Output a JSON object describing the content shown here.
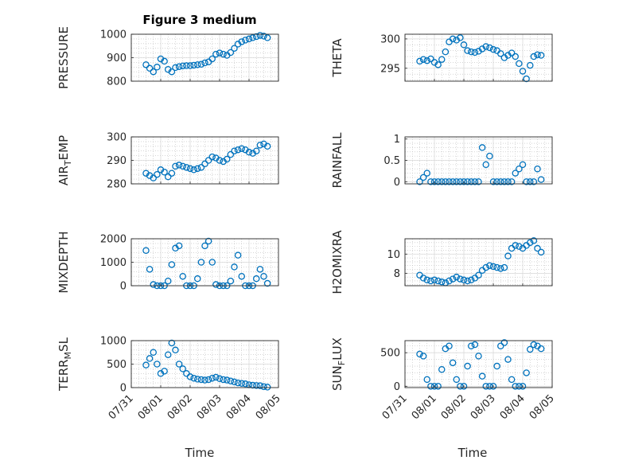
{
  "figure": {
    "title": "Figure 3 medium",
    "xlabel": "Time",
    "x_ticks": [
      "07/31",
      "08/01",
      "08/02",
      "08/03",
      "08/04",
      "08/05"
    ],
    "marker_color": "#0072BD",
    "grid": true
  },
  "chart_data": [
    {
      "type": "scatter",
      "ylabel": "PRESSURE",
      "ylim": [
        800,
        1000
      ],
      "yticks": [
        800,
        900,
        1000
      ],
      "x": [
        "07/31 12:00",
        "07/31 15:00",
        "07/31 18:00",
        "07/31 21:00",
        "08/01 00:00",
        "08/01 03:00",
        "08/01 06:00",
        "08/01 09:00",
        "08/01 12:00",
        "08/01 15:00",
        "08/01 18:00",
        "08/01 21:00",
        "08/02 00:00",
        "08/02 03:00",
        "08/02 06:00",
        "08/02 09:00",
        "08/02 12:00",
        "08/02 15:00",
        "08/02 18:00",
        "08/02 21:00",
        "08/03 00:00",
        "08/03 03:00",
        "08/03 06:00",
        "08/03 09:00",
        "08/03 12:00",
        "08/03 15:00",
        "08/03 18:00",
        "08/03 21:00",
        "08/04 00:00",
        "08/04 03:00",
        "08/04 06:00",
        "08/04 09:00",
        "08/04 12:00",
        "08/04 15:00"
      ],
      "y": [
        870,
        855,
        840,
        860,
        895,
        885,
        850,
        840,
        858,
        862,
        865,
        866,
        866,
        868,
        870,
        872,
        878,
        882,
        895,
        915,
        920,
        915,
        910,
        922,
        940,
        958,
        968,
        975,
        980,
        985,
        990,
        995,
        992,
        985
      ]
    },
    {
      "type": "scatter",
      "ylabel": "THETA",
      "ylim": [
        292.8,
        300.8
      ],
      "yticks": [
        295,
        300
      ],
      "x": [
        "07/31 12:00",
        "07/31 15:00",
        "07/31 18:00",
        "07/31 21:00",
        "08/01 00:00",
        "08/01 03:00",
        "08/01 06:00",
        "08/01 09:00",
        "08/01 12:00",
        "08/01 15:00",
        "08/01 18:00",
        "08/01 21:00",
        "08/02 00:00",
        "08/02 03:00",
        "08/02 06:00",
        "08/02 09:00",
        "08/02 12:00",
        "08/02 15:00",
        "08/02 18:00",
        "08/02 21:00",
        "08/03 00:00",
        "08/03 03:00",
        "08/03 06:00",
        "08/03 09:00",
        "08/03 12:00",
        "08/03 15:00",
        "08/03 18:00",
        "08/03 21:00",
        "08/04 00:00",
        "08/04 03:00",
        "08/04 06:00",
        "08/04 09:00",
        "08/04 12:00",
        "08/04 15:00"
      ],
      "y": [
        296.2,
        296.5,
        296.3,
        296.6,
        296.0,
        295.6,
        296.5,
        297.8,
        299.5,
        300.0,
        299.8,
        300.2,
        299.0,
        298.0,
        297.8,
        297.7,
        297.9,
        298.3,
        298.7,
        298.5,
        298.2,
        298.0,
        297.5,
        296.8,
        297.2,
        297.6,
        297.0,
        295.8,
        294.5,
        293.2,
        295.5,
        297.0,
        297.3,
        297.2
      ]
    },
    {
      "type": "scatter",
      "ylabel": "AIR_TEMP",
      "ylim": [
        280,
        300
      ],
      "yticks": [
        280,
        290,
        300
      ],
      "x": [
        "07/31 12:00",
        "07/31 15:00",
        "07/31 18:00",
        "07/31 21:00",
        "08/01 00:00",
        "08/01 03:00",
        "08/01 06:00",
        "08/01 09:00",
        "08/01 12:00",
        "08/01 15:00",
        "08/01 18:00",
        "08/01 21:00",
        "08/02 00:00",
        "08/02 03:00",
        "08/02 06:00",
        "08/02 09:00",
        "08/02 12:00",
        "08/02 15:00",
        "08/02 18:00",
        "08/02 21:00",
        "08/03 00:00",
        "08/03 03:00",
        "08/03 06:00",
        "08/03 09:00",
        "08/03 12:00",
        "08/03 15:00",
        "08/03 18:00",
        "08/03 21:00",
        "08/04 00:00",
        "08/04 03:00",
        "08/04 06:00",
        "08/04 09:00",
        "08/04 12:00",
        "08/04 15:00"
      ],
      "y": [
        284.5,
        283.5,
        282.5,
        284.0,
        286.0,
        285.0,
        283.0,
        284.5,
        287.5,
        288.0,
        287.5,
        287.0,
        286.5,
        286.0,
        286.5,
        287.0,
        288.5,
        290.0,
        291.5,
        291.0,
        290.0,
        289.5,
        290.5,
        292.5,
        294.0,
        294.5,
        295.0,
        294.5,
        293.5,
        293.0,
        294.0,
        296.5,
        297.0,
        296.0
      ]
    },
    {
      "type": "scatter",
      "ylabel": "RAINFALL",
      "ylim": [
        -0.05,
        1.05
      ],
      "yticks": [
        0,
        0.5,
        1
      ],
      "x": [
        "07/31 12:00",
        "07/31 15:00",
        "07/31 18:00",
        "07/31 21:00",
        "08/01 00:00",
        "08/01 03:00",
        "08/01 06:00",
        "08/01 09:00",
        "08/01 12:00",
        "08/01 15:00",
        "08/01 18:00",
        "08/01 21:00",
        "08/02 00:00",
        "08/02 03:00",
        "08/02 06:00",
        "08/02 09:00",
        "08/02 12:00",
        "08/02 15:00",
        "08/02 18:00",
        "08/02 21:00",
        "08/03 00:00",
        "08/03 03:00",
        "08/03 06:00",
        "08/03 09:00",
        "08/03 12:00",
        "08/03 15:00",
        "08/03 18:00",
        "08/03 21:00",
        "08/04 00:00",
        "08/04 03:00",
        "08/04 06:00",
        "08/04 09:00",
        "08/04 12:00",
        "08/04 15:00"
      ],
      "y": [
        0.0,
        0.1,
        0.2,
        0.0,
        0.0,
        0.0,
        0.0,
        0.0,
        0.0,
        0.0,
        0.0,
        0.0,
        0.0,
        0.0,
        0.0,
        0.0,
        0.0,
        0.8,
        0.4,
        0.6,
        0.0,
        0.0,
        0.0,
        0.0,
        0.0,
        0.0,
        0.2,
        0.3,
        0.4,
        0.0,
        0.0,
        0.0,
        0.3,
        0.05
      ]
    },
    {
      "type": "scatter",
      "ylabel": "MIXDEPTH",
      "ylim": [
        0,
        2000
      ],
      "yticks": [
        0,
        1000,
        2000
      ],
      "x": [
        "07/31 12:00",
        "07/31 15:00",
        "07/31 18:00",
        "07/31 21:00",
        "08/01 00:00",
        "08/01 03:00",
        "08/01 06:00",
        "08/01 09:00",
        "08/01 12:00",
        "08/01 15:00",
        "08/01 18:00",
        "08/01 21:00",
        "08/02 00:00",
        "08/02 03:00",
        "08/02 06:00",
        "08/02 09:00",
        "08/02 12:00",
        "08/02 15:00",
        "08/02 18:00",
        "08/02 21:00",
        "08/03 00:00",
        "08/03 03:00",
        "08/03 06:00",
        "08/03 09:00",
        "08/03 12:00",
        "08/03 15:00",
        "08/03 18:00",
        "08/03 21:00",
        "08/04 00:00",
        "08/04 03:00",
        "08/04 06:00",
        "08/04 09:00",
        "08/04 12:00",
        "08/04 15:00"
      ],
      "y": [
        1500,
        700,
        50,
        0,
        0,
        0,
        200,
        900,
        1600,
        1700,
        400,
        0,
        0,
        0,
        300,
        1000,
        1700,
        1900,
        1000,
        50,
        0,
        0,
        0,
        200,
        800,
        1300,
        400,
        0,
        0,
        0,
        300,
        700,
        400,
        100
      ]
    },
    {
      "type": "scatter",
      "ylabel": "H2OMIXRA",
      "ylim": [
        6.7,
        11.6
      ],
      "yticks": [
        8,
        10
      ],
      "x": [
        "07/31 12:00",
        "07/31 15:00",
        "07/31 18:00",
        "07/31 21:00",
        "08/01 00:00",
        "08/01 03:00",
        "08/01 06:00",
        "08/01 09:00",
        "08/01 12:00",
        "08/01 15:00",
        "08/01 18:00",
        "08/01 21:00",
        "08/02 00:00",
        "08/02 03:00",
        "08/02 06:00",
        "08/02 09:00",
        "08/02 12:00",
        "08/02 15:00",
        "08/02 18:00",
        "08/02 21:00",
        "08/03 00:00",
        "08/03 03:00",
        "08/03 06:00",
        "08/03 09:00",
        "08/03 12:00",
        "08/03 15:00",
        "08/03 18:00",
        "08/03 21:00",
        "08/04 00:00",
        "08/04 03:00",
        "08/04 06:00",
        "08/04 09:00",
        "08/04 12:00",
        "08/04 15:00"
      ],
      "y": [
        7.8,
        7.5,
        7.3,
        7.2,
        7.3,
        7.2,
        7.1,
        7.0,
        7.2,
        7.4,
        7.6,
        7.4,
        7.3,
        7.2,
        7.3,
        7.5,
        7.8,
        8.3,
        8.6,
        8.8,
        8.7,
        8.6,
        8.5,
        8.6,
        9.8,
        10.6,
        10.9,
        10.8,
        10.6,
        10.9,
        11.2,
        11.4,
        10.6,
        10.2
      ]
    },
    {
      "type": "scatter",
      "ylabel": "TERR_MSL",
      "ylim": [
        0,
        1000
      ],
      "yticks": [
        0,
        500,
        1000
      ],
      "x": [
        "07/31 12:00",
        "07/31 15:00",
        "07/31 18:00",
        "07/31 21:00",
        "08/01 00:00",
        "08/01 03:00",
        "08/01 06:00",
        "08/01 09:00",
        "08/01 12:00",
        "08/01 15:00",
        "08/01 18:00",
        "08/01 21:00",
        "08/02 00:00",
        "08/02 03:00",
        "08/02 06:00",
        "08/02 09:00",
        "08/02 12:00",
        "08/02 15:00",
        "08/02 18:00",
        "08/02 21:00",
        "08/03 00:00",
        "08/03 03:00",
        "08/03 06:00",
        "08/03 09:00",
        "08/03 12:00",
        "08/03 15:00",
        "08/03 18:00",
        "08/03 21:00",
        "08/04 00:00",
        "08/04 03:00",
        "08/04 06:00",
        "08/04 09:00",
        "08/04 12:00",
        "08/04 15:00"
      ],
      "y": [
        480,
        620,
        750,
        500,
        300,
        350,
        700,
        950,
        800,
        500,
        400,
        300,
        230,
        200,
        180,
        170,
        160,
        170,
        200,
        220,
        190,
        170,
        160,
        140,
        120,
        100,
        90,
        80,
        60,
        50,
        45,
        40,
        20,
        10
      ]
    },
    {
      "type": "scatter",
      "ylabel": "SUN_FLUX",
      "ylim": [
        -20,
        680
      ],
      "yticks": [
        0,
        500
      ],
      "x": [
        "07/31 12:00",
        "07/31 15:00",
        "07/31 18:00",
        "07/31 21:00",
        "08/01 00:00",
        "08/01 03:00",
        "08/01 06:00",
        "08/01 09:00",
        "08/01 12:00",
        "08/01 15:00",
        "08/01 18:00",
        "08/01 21:00",
        "08/02 00:00",
        "08/02 03:00",
        "08/02 06:00",
        "08/02 09:00",
        "08/02 12:00",
        "08/02 15:00",
        "08/02 18:00",
        "08/02 21:00",
        "08/03 00:00",
        "08/03 03:00",
        "08/03 06:00",
        "08/03 09:00",
        "08/03 12:00",
        "08/03 15:00",
        "08/03 18:00",
        "08/03 21:00",
        "08/04 00:00",
        "08/04 03:00",
        "08/04 06:00",
        "08/04 09:00",
        "08/04 12:00",
        "08/04 15:00"
      ],
      "y": [
        480,
        450,
        100,
        0,
        0,
        0,
        250,
        560,
        600,
        350,
        100,
        0,
        0,
        300,
        600,
        620,
        450,
        150,
        0,
        0,
        0,
        300,
        600,
        650,
        400,
        100,
        0,
        0,
        0,
        200,
        550,
        620,
        600,
        560
      ]
    }
  ]
}
